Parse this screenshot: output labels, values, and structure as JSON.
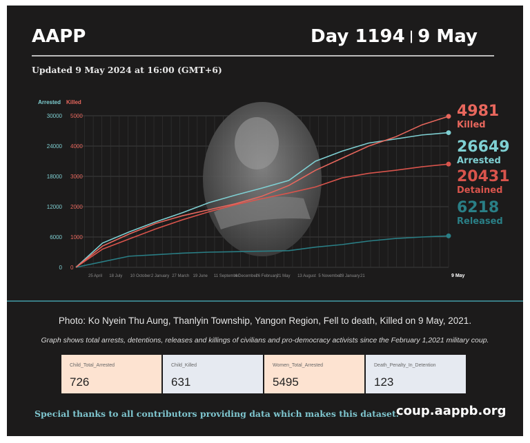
{
  "header": {
    "org": "AAPP",
    "day": "Day 1194",
    "separator": "|",
    "date": "9 May"
  },
  "updated": "Updated 9 May 2024 at 16:00 (GMT+6)",
  "colors": {
    "arrested": "#7fd0d3",
    "killed": "#e8675d",
    "detained": "#d9544c",
    "released": "#2a7f86"
  },
  "chart_data": {
    "type": "line",
    "axes": {
      "left_label": "Arrested",
      "right_label": "Killed",
      "arrested_ticks": [
        "30000",
        "24000",
        "18000",
        "12000",
        "6000",
        "0"
      ],
      "killed_ticks": [
        "5000",
        "4000",
        "3000",
        "2000",
        "1000",
        "0"
      ],
      "arrested_range": [
        0,
        30000
      ],
      "killed_range": [
        0,
        5000
      ],
      "x_ticks": [
        "25 April",
        "18 July",
        "10 October",
        "2 January",
        "27 March",
        "19 June",
        "11 September",
        "4 December",
        "26 February",
        "21 May",
        "13 August",
        "5 November",
        "28 January",
        "21",
        "9 May"
      ],
      "grid": true
    },
    "x_count": 15,
    "series": [
      {
        "key": "killed",
        "name": "Killed",
        "axis": "killed",
        "final_value": "4981",
        "values": [
          0,
          700,
          1100,
          1450,
          1700,
          1900,
          2100,
          2350,
          2700,
          3200,
          3600,
          4000,
          4300,
          4700,
          4981
        ]
      },
      {
        "key": "arrested",
        "name": "Arrested",
        "axis": "arrested",
        "final_value": "26649",
        "values": [
          0,
          4800,
          7000,
          9000,
          10800,
          12800,
          14300,
          15700,
          17200,
          21000,
          23000,
          24600,
          25400,
          26200,
          26649
        ]
      },
      {
        "key": "detained",
        "name": "Detained",
        "axis": "arrested",
        "final_value": "20431",
        "values": [
          0,
          3600,
          5600,
          7600,
          9400,
          11000,
          12400,
          13600,
          14700,
          15900,
          17700,
          18600,
          19200,
          19900,
          20431
        ]
      },
      {
        "key": "released",
        "name": "Released",
        "axis": "arrested",
        "final_value": "6218",
        "values": [
          0,
          1100,
          2200,
          2500,
          2800,
          3000,
          3100,
          3200,
          3300,
          4000,
          4500,
          5200,
          5700,
          6000,
          6218
        ]
      }
    ]
  },
  "caption": "Photo: Ko Nyein Thu Aung, Thanlyin Township, Yangon Region, Fell to death, Killed on 9 May, 2021.",
  "note": "Graph shows total arrests, detentions, releases and killings of civilians and pro-democracy activists since the February 1,2021 military coup.",
  "stats": [
    {
      "label": "Child_Total_Arrested",
      "value": "726",
      "bg": "#fde3d1"
    },
    {
      "label": "Child_Killed",
      "value": "631",
      "bg": "#e6eaf1"
    },
    {
      "label": "Women_Total_Arrested",
      "value": "5495",
      "bg": "#fde3d1"
    },
    {
      "label": "Death_Penalty_In_Detention",
      "value": "123",
      "bg": "#e6eaf1"
    }
  ],
  "thanks": "Special thanks to all contributors providing data which makes this dataset.",
  "website": "coup.aappb.org"
}
